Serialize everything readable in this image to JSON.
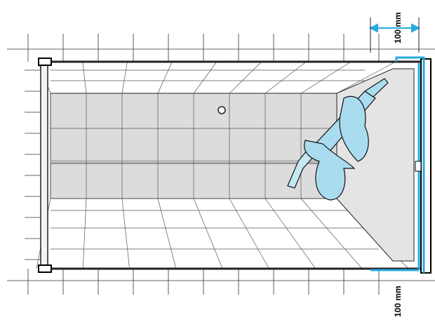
{
  "dimensions": [
    {
      "label": "100 mm"
    },
    {
      "label": "100 mm"
    }
  ]
}
